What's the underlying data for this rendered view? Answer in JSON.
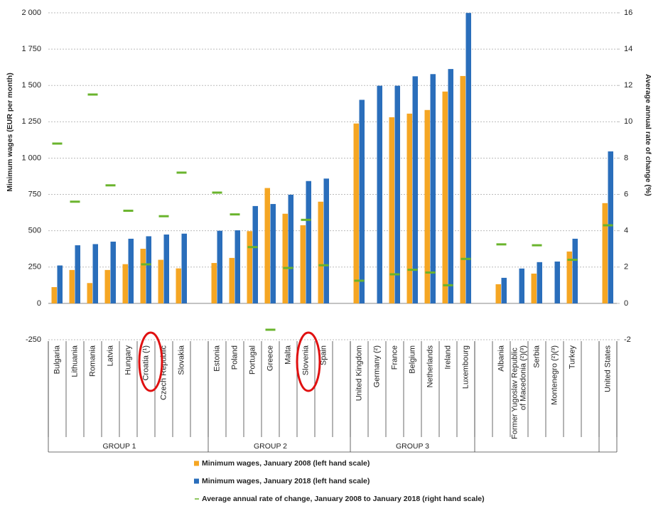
{
  "chart_data": {
    "type": "bar",
    "y_label": "Minimum wages (EUR per month)",
    "y2_label": "Average annual rate of change (%)",
    "categories": [
      "Bulgaria",
      "Lithuania",
      "Romania",
      "Latvia",
      "Hungary",
      "Croatia (¹)",
      "Czech Republic",
      "Slovakia",
      null,
      "Estonia",
      "Poland",
      "Portugal",
      "Greece",
      "Malta",
      "Slovenia",
      "Spain",
      null,
      "United Kingdom",
      "Germany (²)",
      "France",
      "Belgium",
      "Netherlands",
      "Ireland",
      "Luxembourg",
      null,
      "Albania",
      "Former Yugoslav Republic of Macedonia (²)(³)",
      "Serbia",
      "Montenegro (²)(³)",
      "Turkey",
      null,
      "United States"
    ],
    "groups": [
      {
        "label": "GROUP 1",
        "from": 0,
        "to": 7
      },
      {
        "label": "GROUP 2",
        "from": 9,
        "to": 15
      },
      {
        "label": "GROUP 3",
        "from": 17,
        "to": 23
      }
    ],
    "series": [
      {
        "name": "Minimum wages, January 2008 (left hand scale)",
        "color": "#f5a623",
        "values": [
          112,
          230,
          140,
          230,
          270,
          376,
          300,
          241,
          null,
          278,
          313,
          497,
          794,
          617,
          538,
          700,
          null,
          1238,
          null,
          1281,
          1306,
          1331,
          1458,
          1565,
          null,
          132,
          null,
          205,
          null,
          357,
          null,
          690
        ]
      },
      {
        "name": "Minimum wages, January 2018 (left hand scale)",
        "color": "#2a6ebb",
        "values": [
          261,
          400,
          408,
          425,
          445,
          462,
          474,
          480,
          null,
          500,
          503,
          670,
          684,
          748,
          842,
          859,
          null,
          1401,
          1498,
          1498,
          1563,
          1578,
          1613,
          1999,
          null,
          176,
          240,
          284,
          288,
          445,
          null,
          1046
        ]
      },
      {
        "name": "Average annual rate of change, January 2008 to January 2018 (right hand scale)",
        "color": "#6ab42d",
        "axis": "y2",
        "style": "dash",
        "values": [
          8.8,
          5.6,
          11.5,
          6.5,
          5.1,
          2.15,
          4.8,
          7.2,
          null,
          6.1,
          4.9,
          3.1,
          -1.45,
          1.95,
          4.6,
          2.1,
          null,
          1.25,
          null,
          1.6,
          1.85,
          1.7,
          1.0,
          2.45,
          null,
          3.25,
          null,
          3.2,
          null,
          2.4,
          null,
          4.3
        ]
      }
    ],
    "ylim": [
      -250,
      2000
    ],
    "yticks": [
      -250,
      0,
      250,
      500,
      750,
      {
        "value": 1000,
        "label": "1 000"
      },
      {
        "value": 1250,
        "label": "1 250"
      },
      {
        "value": 1500,
        "label": "1 500"
      },
      {
        "value": 1750,
        "label": "1 750"
      },
      {
        "value": 2000,
        "label": "2 000"
      }
    ],
    "y2lim": [
      -2,
      16
    ],
    "y2ticks": [
      -2,
      0,
      2,
      4,
      6,
      8,
      10,
      12,
      14,
      16
    ],
    "grid": true
  }
}
